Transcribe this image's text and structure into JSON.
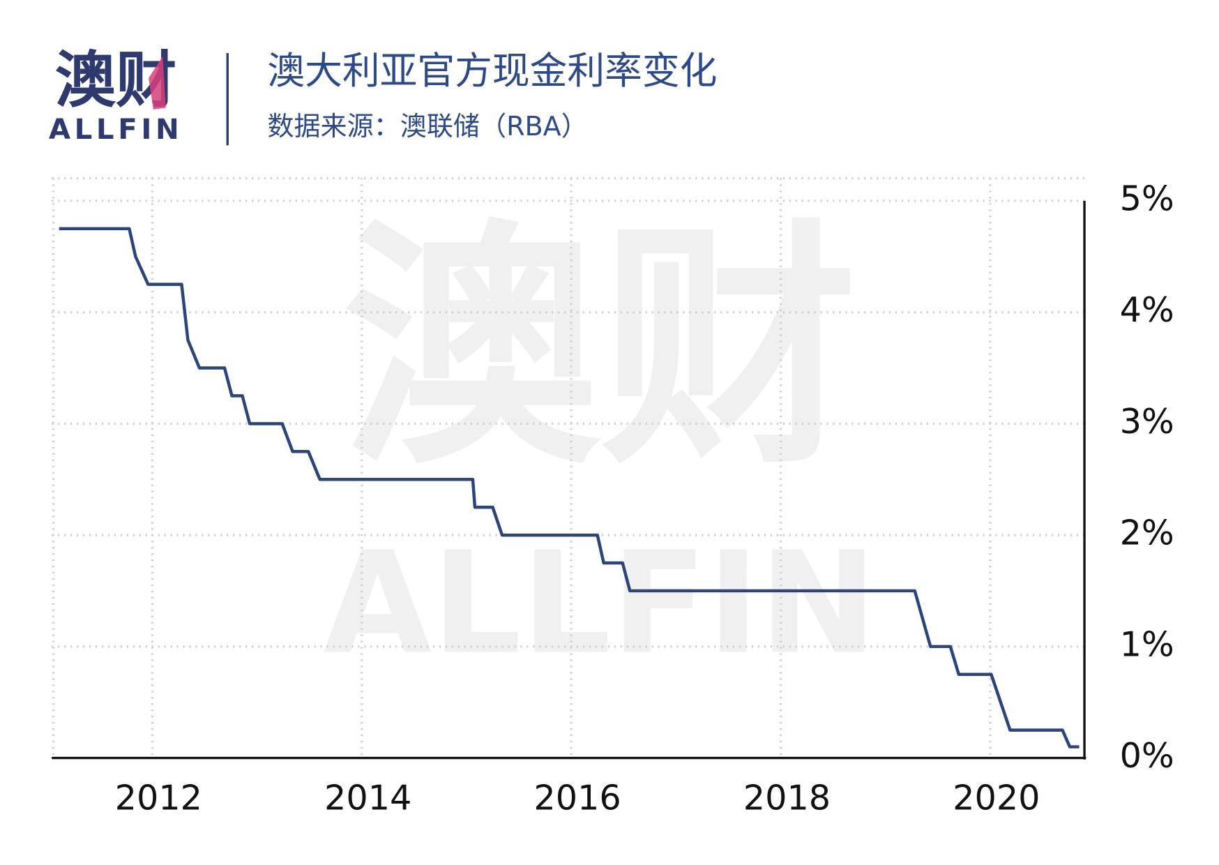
{
  "logo": {
    "cn": "澳财",
    "en": "ALLFIN"
  },
  "watermark": {
    "cn": "澳财",
    "en": "ALLFIN"
  },
  "chart_data": {
    "type": "line",
    "title": "澳大利亚官方现金利率变化",
    "subtitle": "数据来源：澳联储（RBA）",
    "x": [
      2011.11,
      2011.78,
      2011.84,
      2011.96,
      2012.28,
      2012.34,
      2012.45,
      2012.69,
      2012.76,
      2012.86,
      2012.93,
      2013.24,
      2013.34,
      2013.49,
      2013.6,
      2015.06,
      2015.08,
      2015.25,
      2015.34,
      2016.25,
      2016.31,
      2016.49,
      2016.56,
      2019.28,
      2019.43,
      2019.62,
      2019.7,
      2020.01,
      2020.19,
      2020.69,
      2020.76,
      2020.85
    ],
    "series": [
      {
        "color": "#2b4479",
        "values": [
          4.75,
          4.75,
          4.5,
          4.25,
          4.25,
          3.75,
          3.5,
          3.5,
          3.25,
          3.25,
          3.0,
          3.0,
          2.75,
          2.75,
          2.5,
          2.5,
          2.25,
          2.25,
          2.0,
          2.0,
          1.75,
          1.75,
          1.5,
          1.5,
          1.0,
          1.0,
          0.75,
          0.75,
          0.25,
          0.25,
          0.1,
          0.1
        ]
      }
    ],
    "xlim": [
      2011.04,
      2020.9
    ],
    "xticks": [
      2012,
      2014,
      2016,
      2018,
      2020
    ],
    "ylim": [
      0,
      5
    ],
    "yticks": [
      {
        "value": 0,
        "label": "0%"
      },
      {
        "value": 1,
        "label": "1%"
      },
      {
        "value": 2,
        "label": "2%"
      },
      {
        "value": 3,
        "label": "3%"
      },
      {
        "value": 4,
        "label": "4%"
      },
      {
        "value": 5,
        "label": "5%"
      }
    ],
    "grid": true,
    "y_axis_side": "right"
  }
}
